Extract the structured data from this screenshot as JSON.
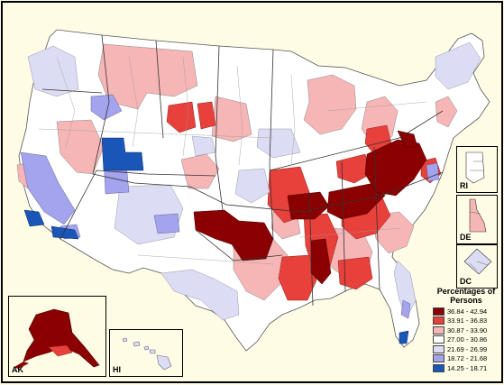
{
  "legend": {
    "title": "Percentages of Persons",
    "items": [
      {
        "label": "36.84 - 42.94",
        "color": "#8b0000"
      },
      {
        "label": "33.91 - 36.83",
        "color": "#e8403a"
      },
      {
        "label": "30.87 - 33.90",
        "color": "#f6b6b6"
      },
      {
        "label": "27.00 - 30.86",
        "color": "#ffffff"
      },
      {
        "label": "21.69 - 26.99",
        "color": "#dcdcf4"
      },
      {
        "label": "18.72 - 21.68",
        "color": "#a3a3ee"
      },
      {
        "label": "14.25 - 18.71",
        "color": "#1a55b8"
      }
    ]
  },
  "insets": {
    "ak": "AK",
    "hi": "HI",
    "ri": "RI",
    "de": "DE",
    "dc": "DC"
  }
}
